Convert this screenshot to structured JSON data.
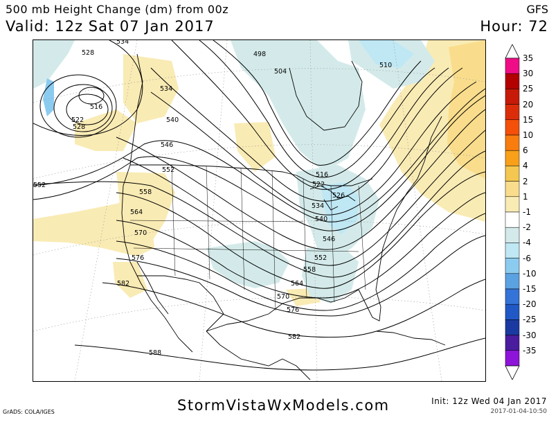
{
  "header": {
    "title": "500 mb Height Change (dm) from 00z",
    "valid": "Valid: 12z Sat 07 Jan 2017",
    "model": "GFS",
    "hour": "Hour: 72"
  },
  "colors": {
    "rise_light": "#f9ebb4",
    "fall_light": "#d4eaea",
    "fall_mid": "#bfe7f4",
    "contour": "#000000",
    "coast": "#000000"
  },
  "colorbar": {
    "labels": [
      "35",
      "30",
      "25",
      "20",
      "15",
      "10",
      "6",
      "4",
      "2",
      "1",
      "-1",
      "-2",
      "-4",
      "-6",
      "-10",
      "-15",
      "-20",
      "-25",
      "-30",
      "-35"
    ],
    "colors": [
      "#ef0d87",
      "#b30000",
      "#c81a08",
      "#dc2d0a",
      "#f4500a",
      "#f87d0e",
      "#f9a01a",
      "#f4c750",
      "#f9dd8c",
      "#f9ebb4",
      "#ffffff",
      "#d4eaea",
      "#bfe7f4",
      "#8ccbf0",
      "#5ba2e3",
      "#3473d7",
      "#2059c6",
      "#1a3aa2",
      "#4a1c9e",
      "#8e14d9"
    ],
    "upper_arrow": "#ffffff",
    "lower_arrow": "#ffffff"
  },
  "contour_labels": [
    "534",
    "528",
    "498",
    "504",
    "510",
    "534",
    "516",
    "522",
    "528",
    "540",
    "546",
    "552",
    "552",
    "516",
    "522",
    "526",
    "534",
    "558",
    "564",
    "540",
    "546",
    "570",
    "552",
    "576",
    "558",
    "582",
    "564",
    "570",
    "576",
    "582",
    "588"
  ],
  "footer": {
    "credit": "GrADS: COLA/IGES",
    "watermark": "StormVistaWxModels.com",
    "init": "Init: 12z Wed 04 Jan 2017",
    "timestamp": "2017-01-04-10:50"
  }
}
